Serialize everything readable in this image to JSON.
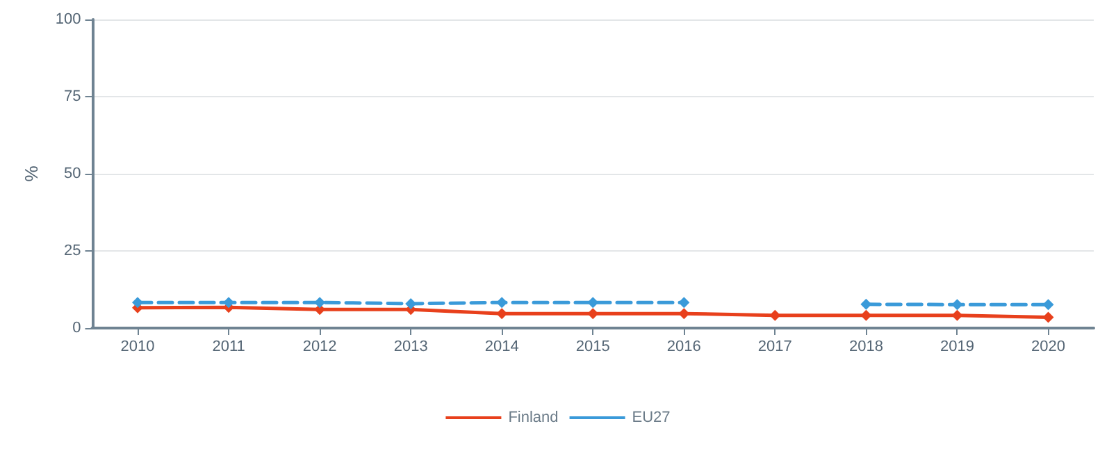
{
  "chart_data": {
    "type": "line",
    "ylabel": "%",
    "categories": [
      "2010",
      "2011",
      "2012",
      "2013",
      "2014",
      "2015",
      "2016",
      "2017",
      "2018",
      "2019",
      "2020"
    ],
    "series": [
      {
        "name": "Finland",
        "color": "#e8401c",
        "line_style": "solid",
        "values": [
          6.6,
          6.7,
          6.0,
          6.0,
          4.7,
          4.7,
          4.7,
          4.1,
          4.1,
          4.1,
          3.5
        ]
      },
      {
        "name": "EU27",
        "color": "#3a9ad9",
        "line_style": "dashed",
        "values": [
          8.3,
          8.3,
          8.3,
          7.9,
          8.3,
          8.3,
          8.3,
          null,
          7.7,
          7.6,
          7.6
        ]
      }
    ],
    "ylim": [
      0,
      100
    ],
    "yticks": [
      0,
      25,
      50,
      75,
      100
    ],
    "grid": "y",
    "legend": "bottom",
    "marker": "diamond"
  }
}
